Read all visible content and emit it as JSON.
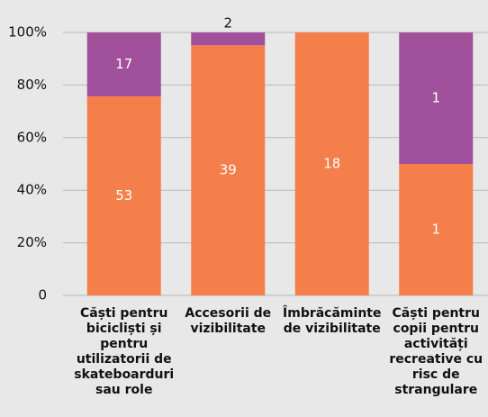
{
  "chart_data": {
    "type": "stacked_percent_bar",
    "categories": [
      "Căști pentru bicicliști și pentru utilizatorii de skateboarduri sau role",
      "Accesorii de vizibilitate",
      "Îmbrăcăminte de vizibilitate",
      "Căști pentru copii pentru activități recreative cu risc de strangulare"
    ],
    "series": [
      {
        "color": "#f47f4b",
        "values": [
          53,
          39,
          18,
          1
        ]
      },
      {
        "color": "#a1509b",
        "values": [
          17,
          2,
          0,
          1
        ]
      }
    ],
    "ylim": [
      0,
      100
    ],
    "yticks": [
      0,
      {
        "value": 20,
        "label": "20%"
      },
      {
        "value": 40,
        "label": "40%"
      },
      {
        "value": 60,
        "label": "60%"
      },
      {
        "value": 80,
        "label": "80%"
      },
      {
        "value": 100,
        "label": "100%"
      }
    ],
    "grid": true
  }
}
